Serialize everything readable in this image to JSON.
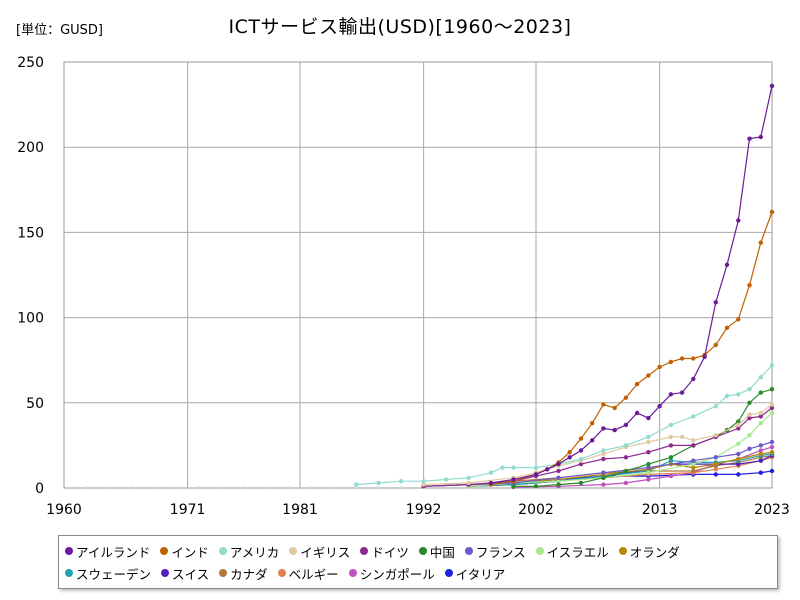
{
  "chart_data": {
    "type": "line",
    "title": "ICTサービス輸出(USD)[1960～2023]",
    "unit_label": "[単位：GUSD]",
    "xlabel": "",
    "ylabel": "",
    "xlim": [
      1960,
      2023
    ],
    "ylim": [
      0,
      250
    ],
    "x_ticks": [
      "1960",
      "1971",
      "1981",
      "1992",
      "2002",
      "2013",
      "2023"
    ],
    "y_ticks": [
      "0",
      "50",
      "100",
      "150",
      "200",
      "250"
    ],
    "grid": true,
    "legend_position": "bottom",
    "series": [
      {
        "name": "アイルランド",
        "color": "#6a1b9a",
        "x": [
          1998,
          2000,
          2002,
          2003,
          2004,
          2005,
          2006,
          2007,
          2008,
          2009,
          2010,
          2011,
          2012,
          2013,
          2014,
          2015,
          2016,
          2017,
          2018,
          2019,
          2020,
          2021,
          2022,
          2023
        ],
        "values": [
          3,
          5,
          8,
          11,
          14,
          18,
          22,
          28,
          35,
          34,
          37,
          44,
          41,
          48,
          55,
          56,
          64,
          77,
          109,
          131,
          157,
          205,
          206,
          236
        ]
      },
      {
        "name": "インド",
        "color": "#c06000",
        "x": [
          1998,
          2000,
          2002,
          2003,
          2004,
          2005,
          2006,
          2007,
          2008,
          2009,
          2010,
          2011,
          2012,
          2013,
          2014,
          2015,
          2016,
          2017,
          2018,
          2019,
          2020,
          2021,
          2022,
          2023
        ],
        "values": [
          2,
          4,
          8,
          11,
          15,
          21,
          29,
          38,
          49,
          47,
          53,
          61,
          66,
          71,
          74,
          76,
          76,
          78,
          84,
          94,
          99,
          119,
          144,
          162
        ]
      },
      {
        "name": "アメリカ",
        "color": "#90dcd0",
        "x": [
          1986,
          1988,
          1990,
          1992,
          1994,
          1996,
          1998,
          1999,
          2000,
          2002,
          2004,
          2006,
          2008,
          2010,
          2012,
          2014,
          2016,
          2018,
          2019,
          2020,
          2021,
          2022,
          2023
        ],
        "values": [
          2,
          3,
          4,
          4,
          5,
          6,
          9,
          12,
          12,
          12,
          14,
          17,
          22,
          25,
          30,
          37,
          42,
          48,
          54,
          55,
          58,
          65,
          72
        ]
      },
      {
        "name": "イギリス",
        "color": "#e0c8a0",
        "x": [
          1992,
          1996,
          2000,
          2002,
          2004,
          2006,
          2008,
          2010,
          2012,
          2014,
          2015,
          2016,
          2018,
          2020,
          2021,
          2022,
          2023
        ],
        "values": [
          2,
          3,
          6,
          9,
          13,
          16,
          20,
          24,
          27,
          30,
          30,
          28,
          31,
          37,
          43,
          44,
          49
        ]
      },
      {
        "name": "ドイツ",
        "color": "#8e2a8e",
        "x": [
          1992,
          1996,
          2000,
          2002,
          2004,
          2006,
          2008,
          2010,
          2012,
          2014,
          2016,
          2018,
          2020,
          2021,
          2022,
          2023
        ],
        "values": [
          1,
          2,
          4,
          7,
          10,
          14,
          17,
          18,
          21,
          25,
          25,
          30,
          35,
          41,
          42,
          47
        ]
      },
      {
        "name": "中国",
        "color": "#2a8a2a",
        "x": [
          2000,
          2002,
          2004,
          2006,
          2008,
          2010,
          2012,
          2014,
          2016,
          2018,
          2019,
          2020,
          2021,
          2022,
          2023
        ],
        "values": [
          1,
          1,
          2,
          3,
          6,
          10,
          14,
          18,
          25,
          30,
          34,
          39,
          50,
          56,
          58
        ]
      },
      {
        "name": "フランス",
        "color": "#6a5acd",
        "x": [
          1992,
          1996,
          2000,
          2004,
          2008,
          2012,
          2016,
          2018,
          2020,
          2021,
          2022,
          2023
        ],
        "values": [
          1,
          2,
          3,
          6,
          9,
          12,
          16,
          18,
          20,
          23,
          25,
          27
        ]
      },
      {
        "name": "イスラエル",
        "color": "#a8e890",
        "x": [
          1996,
          2000,
          2004,
          2008,
          2012,
          2016,
          2018,
          2020,
          2021,
          2022,
          2023
        ],
        "values": [
          1,
          3,
          4,
          6,
          9,
          14,
          18,
          26,
          31,
          38,
          44
        ]
      },
      {
        "name": "オランダ",
        "color": "#b8860b",
        "x": [
          1996,
          2000,
          2004,
          2008,
          2012,
          2014,
          2016,
          2018,
          2020,
          2022,
          2023
        ],
        "values": [
          1,
          3,
          5,
          8,
          11,
          14,
          12,
          14,
          17,
          20,
          21
        ]
      },
      {
        "name": "スウェーデン",
        "color": "#20a0b0",
        "x": [
          1996,
          2000,
          2004,
          2008,
          2012,
          2014,
          2016,
          2018,
          2020,
          2022,
          2023
        ],
        "values": [
          1,
          2,
          4,
          7,
          10,
          16,
          15,
          15,
          16,
          19,
          20
        ]
      },
      {
        "name": "スイス",
        "color": "#5020c0",
        "x": [
          1996,
          2000,
          2004,
          2008,
          2012,
          2014,
          2016,
          2018,
          2020,
          2022,
          2023
        ],
        "values": [
          1,
          2,
          4,
          7,
          11,
          14,
          14,
          14,
          14,
          16,
          19
        ]
      },
      {
        "name": "カナダ",
        "color": "#b07840",
        "x": [
          1992,
          1996,
          2000,
          2004,
          2008,
          2012,
          2016,
          2018,
          2020,
          2022,
          2023
        ],
        "values": [
          1,
          2,
          4,
          6,
          9,
          10,
          10,
          13,
          15,
          18,
          19
        ]
      },
      {
        "name": "ベルギー",
        "color": "#e08050",
        "x": [
          1996,
          2000,
          2004,
          2008,
          2012,
          2016,
          2018,
          2020,
          2022,
          2023
        ],
        "values": [
          1,
          2,
          4,
          6,
          8,
          9,
          11,
          13,
          16,
          18
        ]
      },
      {
        "name": "シンガポール",
        "color": "#c050c0",
        "x": [
          2000,
          2004,
          2008,
          2010,
          2012,
          2014,
          2016,
          2018,
          2020,
          2022,
          2023
        ],
        "values": [
          0.5,
          1,
          2,
          3,
          5,
          7,
          9,
          14,
          17,
          22,
          24
        ]
      },
      {
        "name": "イタリア",
        "color": "#2020e0",
        "x": [
          1992,
          1996,
          2000,
          2004,
          2008,
          2012,
          2016,
          2018,
          2020,
          2022,
          2023
        ],
        "values": [
          1,
          2,
          3,
          5,
          7,
          7,
          8,
          8,
          8,
          9,
          10
        ]
      }
    ]
  }
}
